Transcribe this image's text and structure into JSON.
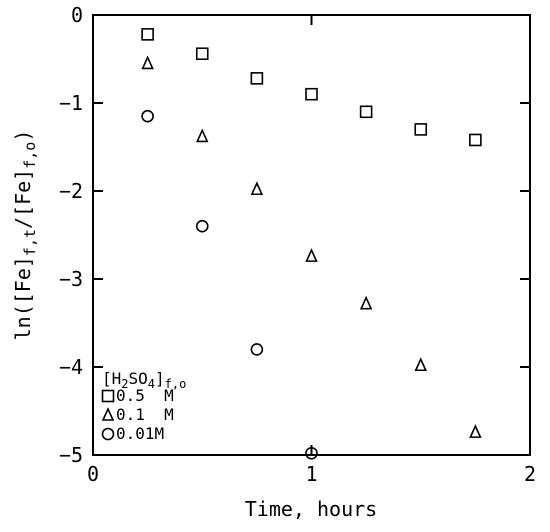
{
  "chart_data": {
    "type": "scatter",
    "xlabel": "Time, hours",
    "ylabel": "ln([Fe]f,t/[Fe]f,o)",
    "xlim": [
      0,
      2
    ],
    "ylim": [
      -5,
      0
    ],
    "x_ticks": [
      0,
      1,
      2
    ],
    "y_ticks": [
      0,
      -1,
      -2,
      -3,
      -4,
      -5
    ],
    "x_tick_labels": [
      "0",
      "1",
      "2"
    ],
    "y_tick_labels": [
      "0",
      "−1",
      "−2",
      "−3",
      "−4",
      "−5"
    ],
    "grid": false,
    "legend_position": "bottom-left",
    "legend_title": "[H2SO4]f,o",
    "series": [
      {
        "name": "0.5  M",
        "marker": "square",
        "x": [
          0.25,
          0.5,
          0.75,
          1.0,
          1.25,
          1.5,
          1.75
        ],
        "y": [
          -0.22,
          -0.44,
          -0.72,
          -0.9,
          -1.1,
          -1.3,
          -1.42
        ]
      },
      {
        "name": "0.1  M",
        "marker": "triangle",
        "x": [
          0.25,
          0.5,
          0.75,
          1.0,
          1.25,
          1.5,
          1.75
        ],
        "y": [
          -0.55,
          -1.38,
          -1.98,
          -2.74,
          -3.28,
          -3.98,
          -4.74
        ]
      },
      {
        "name": "0.01M",
        "marker": "circle",
        "x": [
          0.25,
          0.5,
          0.75,
          1.0
        ],
        "y": [
          -1.15,
          -2.4,
          -3.8,
          -4.98
        ]
      }
    ]
  }
}
